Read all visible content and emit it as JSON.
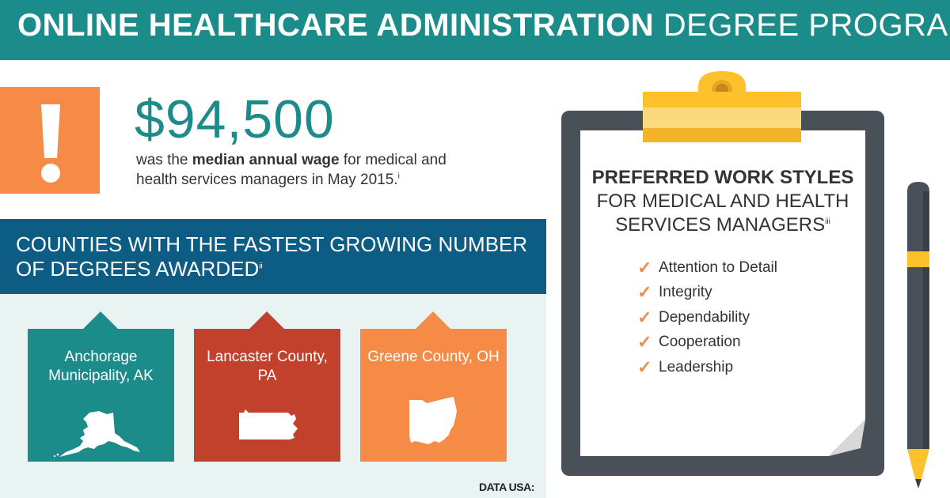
{
  "header": {
    "title_bold": "ONLINE HEALTHCARE ADMINISTRATION",
    "title_light": "DEGREE PROGRAMS"
  },
  "alert": {
    "icon": "exclamation-icon"
  },
  "stat": {
    "amount": "$94,500",
    "desc_prefix": "was the ",
    "desc_bold": "median annual wage",
    "desc_suffix": " for medical and health services managers in May 2015.",
    "footnote": "i"
  },
  "counties": {
    "title": "COUNTIES WITH THE FASTEST GROWING NUMBER OF DEGREES AWARDED",
    "footnote": "ii",
    "items": [
      {
        "name": "Anchorage Municipality, AK",
        "icon": "alaska-map-icon",
        "color": "#1c8c8a"
      },
      {
        "name": "Lancaster County, PA",
        "icon": "pennsylvania-map-icon",
        "color": "#c2412c"
      },
      {
        "name": "Greene County, OH",
        "icon": "ohio-map-icon",
        "color": "#f68b47"
      }
    ]
  },
  "source": {
    "label": "DATA USA:"
  },
  "work_styles": {
    "title_bold": "PREFERRED WORK STYLES",
    "title_light": "FOR MEDICAL AND HEALTH SERVICES MANAGERS",
    "footnote": "iii",
    "check_glyph": "✓",
    "items": [
      "Attention to Detail",
      "Integrity",
      "Dependability",
      "Cooperation",
      "Leadership"
    ]
  },
  "colors": {
    "teal": "#1c8c8a",
    "navy": "#0d5c84",
    "orange": "#f68b47",
    "red": "#c2412c",
    "clipboard": "#4a5058",
    "clip": "#fdc12b"
  }
}
